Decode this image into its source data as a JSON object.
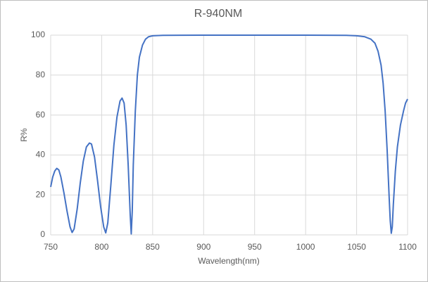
{
  "chart_data": {
    "type": "line",
    "title": "R-940NM",
    "x_label": "Wavelength(nm)",
    "y_label": "R%",
    "x": [
      750,
      752,
      754,
      756,
      758,
      760,
      763,
      766,
      769,
      771,
      773,
      776,
      779,
      782,
      785,
      788,
      790,
      793,
      796,
      799,
      802,
      804,
      806,
      809,
      812,
      815,
      818,
      820,
      822,
      824,
      826,
      828,
      829,
      830,
      831,
      833,
      835,
      837,
      840,
      843,
      846,
      850,
      860,
      900,
      950,
      1000,
      1040,
      1050,
      1058,
      1064,
      1068,
      1071,
      1074,
      1076,
      1078,
      1080,
      1082,
      1083,
      1084,
      1085,
      1086,
      1088,
      1090,
      1093,
      1096,
      1098,
      1100
    ],
    "values": [
      24,
      29,
      32,
      33.3,
      32.5,
      29,
      21,
      12,
      4,
      1.2,
      3,
      13,
      26,
      37,
      44,
      46,
      45.5,
      39,
      27,
      14,
      4,
      1,
      6,
      25,
      45,
      59,
      67,
      68.5,
      66,
      55,
      35,
      10,
      0.5,
      12,
      35,
      62,
      80,
      89,
      95,
      98,
      99.2,
      99.7,
      99.9,
      100,
      100,
      100,
      99.9,
      99.7,
      99.2,
      98,
      96,
      92,
      85,
      76,
      62,
      42,
      18,
      7,
      0.8,
      4,
      15,
      32,
      44,
      55,
      62,
      66,
      68
    ],
    "color": "#4472c4",
    "xlim": [
      750,
      1100
    ],
    "xticks": [
      750,
      800,
      850,
      900,
      950,
      1000,
      1050,
      1100
    ],
    "ylim": [
      0,
      100
    ],
    "yticks": [
      0,
      20,
      40,
      60,
      80,
      100
    ],
    "grid": true
  }
}
